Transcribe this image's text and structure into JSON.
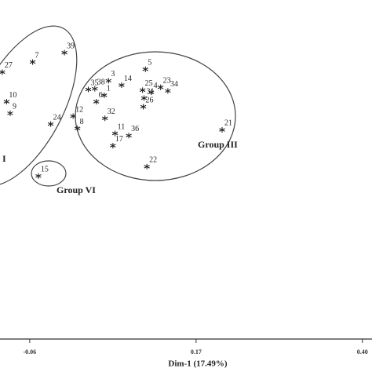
{
  "chart_data": {
    "type": "scatter",
    "x_label": "Dim-1 (17.49%)",
    "point_labels": [
      "27",
      "7",
      "39",
      "10",
      "9",
      "24",
      "12",
      "8",
      "35",
      "38",
      "3",
      "1",
      "6",
      "14",
      "32",
      "11",
      "36",
      "17",
      "5",
      "25",
      "4",
      "31",
      "26",
      "23",
      "34",
      "22",
      "21",
      "15"
    ],
    "x": [
      -0.098,
      -0.056,
      -0.012,
      -0.092,
      -0.087,
      -0.031,
      0.0,
      0.006,
      0.021,
      0.03,
      0.049,
      0.043,
      0.032,
      0.067,
      0.044,
      0.058,
      0.077,
      0.055,
      0.1,
      0.096,
      0.108,
      0.098,
      0.097,
      0.121,
      0.131,
      0.102,
      0.206,
      -0.048
    ],
    "y": [
      0.12,
      0.134,
      0.147,
      0.079,
      0.063,
      0.048,
      0.059,
      0.042,
      0.096,
      0.097,
      0.108,
      0.088,
      0.079,
      0.102,
      0.056,
      0.035,
      0.032,
      0.018,
      0.124,
      0.095,
      0.092,
      0.084,
      0.072,
      0.099,
      0.094,
      -0.011,
      0.04,
      -0.024
    ],
    "color": "#222222",
    "xlim": [
      -0.1,
      0.41
    ],
    "ylim": [
      -0.25,
      0.22
    ],
    "xticks": [
      -0.06,
      0.17,
      {
        "value": 0.4,
        "label": "0.40"
      }
    ],
    "annotations": [
      "Group III",
      "Group VI",
      "I"
    ]
  }
}
